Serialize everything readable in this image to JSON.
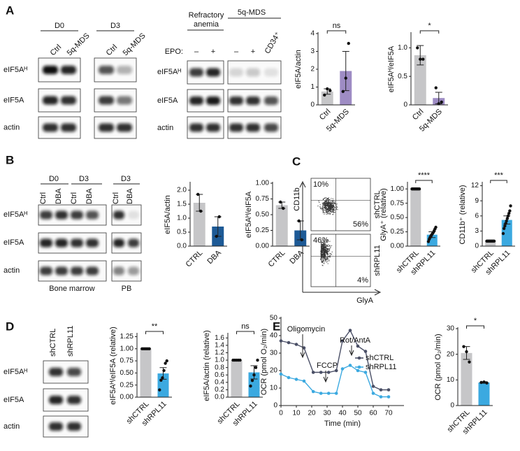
{
  "panel_labels": [
    "A",
    "B",
    "C",
    "D",
    "E"
  ],
  "blots_A": [
    {
      "title": "D0",
      "lanes": [
        "Ctrl",
        "5q-MDS"
      ],
      "rows": [
        "eIF5Aᴴ",
        "eIF5A",
        "actin"
      ]
    },
    {
      "title": "D3",
      "lanes": [
        "Ctrl",
        "5q-MDS"
      ]
    },
    {
      "titles": [
        [
          "Refractory",
          "anemia"
        ],
        "5q-MDS"
      ],
      "treatment_label": "EPO:",
      "lanes": [
        "–",
        "+",
        "–",
        "+",
        "CD34⁺"
      ],
      "rows": [
        "eIF5Aᴴ",
        "eIF5A",
        "actin"
      ]
    }
  ],
  "blots_B": [
    {
      "titles": [
        "D0",
        "D3"
      ],
      "lanes": [
        "Ctrl",
        "DBA",
        "Ctrl",
        "DBA"
      ],
      "rows": [
        "eIF5Aᴴ",
        "eIF5A",
        "actin"
      ],
      "footer": "Bone marrow"
    },
    {
      "title": "D3",
      "lanes": [
        "Ctrl",
        "DBA"
      ],
      "footer": "PB"
    }
  ],
  "flow_C": {
    "y_label": "CD11b",
    "x_label": "GlyA",
    "plots": [
      {
        "name": "shCTRL",
        "upper_left": "10%",
        "lower_right": "56%"
      },
      {
        "name": "shRPL11",
        "upper_left": "46%",
        "lower_right": "4%"
      }
    ]
  },
  "blots_D": {
    "lanes": [
      "shCTRL",
      "shRPL11"
    ],
    "rows": [
      "eIF5Aᴴ",
      "eIF5A",
      "actin"
    ]
  },
  "chart_data": [
    {
      "type": "bar",
      "y_label": "eIF5A/actin",
      "categories": [
        "Ctrl",
        "5q-MDS"
      ],
      "values": [
        0.75,
        1.9
      ],
      "errors": [
        0.15,
        1.1
      ],
      "points": [
        [
          0.55,
          0.9,
          0.8
        ],
        [
          0.75,
          1.5,
          3.45
        ]
      ],
      "colors": [
        "#c6c6c8",
        "#9e8cc4"
      ],
      "ylim": [
        0,
        4
      ],
      "yticks": [
        0,
        1,
        2,
        3,
        4
      ],
      "annotation": "ns"
    },
    {
      "type": "bar",
      "y_label": "eIF5Aᴴ/eIF5A",
      "categories": [
        "Ctrl",
        "5q-MDS"
      ],
      "values": [
        0.87,
        0.12
      ],
      "errors": [
        0.17,
        0.1
      ],
      "points": [
        [
          1.0,
          0.8,
          0.8
        ],
        [
          0.3,
          0.02,
          0.05
        ]
      ],
      "colors": [
        "#c6c6c8",
        "#9e8cc4"
      ],
      "ylim": [
        0,
        1.25
      ],
      "yticks": [
        0,
        {
          "value": 0.5,
          "label": "0.5"
        },
        {
          "value": 1,
          "label": "1.0"
        }
      ],
      "annotation": "*"
    },
    {
      "type": "bar",
      "y_label": "eIF5A/actin",
      "categories": [
        "CTRL",
        "DBA"
      ],
      "values": [
        1.55,
        0.7
      ],
      "errors": [
        0.3,
        0.35
      ],
      "points": [
        [
          1.85,
          1.25
        ],
        [
          0.35,
          1.05
        ]
      ],
      "colors": [
        "#c6c6c8",
        "#1d5a96"
      ],
      "ylim": [
        0,
        2.25
      ],
      "yticks": [
        {
          "value": 0,
          "label": "0.0"
        },
        {
          "value": 0.5,
          "label": "0.5"
        },
        {
          "value": 1,
          "label": "1.0"
        },
        {
          "value": 1.5,
          "label": "1.5"
        },
        {
          "value": 2,
          "label": "2.0"
        }
      ]
    },
    {
      "type": "bar",
      "y_label": "eIF5Aᴴ/eIF5A",
      "categories": [
        "CTRL",
        "DBA"
      ],
      "values": [
        0.65,
        0.25
      ],
      "errors": [
        0.05,
        0.15
      ],
      "points": [
        [
          0.7,
          0.6
        ],
        [
          0.4,
          0.1
        ]
      ],
      "colors": [
        "#c6c6c8",
        "#1d5a96"
      ],
      "ylim": [
        0,
        1.0
      ],
      "yticks": [
        {
          "value": 0,
          "label": "0.00"
        },
        {
          "value": 0.25,
          "label": "0.25"
        },
        {
          "value": 0.5,
          "label": "0.50"
        },
        {
          "value": 0.75,
          "label": "0.75"
        },
        {
          "value": 1,
          "label": "1.00"
        }
      ]
    },
    {
      "type": "bar",
      "y_label": "GlyA⁺ (relative)",
      "categories": [
        "shCTRL",
        "shRPL11"
      ],
      "values": [
        1.0,
        0.2
      ],
      "errors": [
        0,
        0.05
      ],
      "points": [
        [
          1,
          1,
          1,
          1,
          1,
          1,
          1,
          1,
          1,
          1
        ],
        [
          0.08,
          0.12,
          0.15,
          0.18,
          0.2,
          0.22,
          0.24,
          0.27,
          0.3,
          0.33
        ]
      ],
      "colors": [
        "#c6c6c8",
        "#3ba9e0"
      ],
      "ylim": [
        0,
        1.1
      ],
      "yticks": [
        {
          "value": 0,
          "label": "0.00"
        },
        {
          "value": 0.25,
          "label": "0.25"
        },
        {
          "value": 0.5,
          "label": "0.50"
        },
        {
          "value": 0.75,
          "label": "0.75"
        },
        {
          "value": 1,
          "label": "1.00"
        }
      ],
      "annotation": "****"
    },
    {
      "type": "bar",
      "y_label": "CD11b⁺ (relative)",
      "categories": [
        "shCTRL",
        "shRPL11"
      ],
      "values": [
        1,
        5.2
      ],
      "errors": [
        0,
        0.8
      ],
      "points": [
        [
          1,
          1,
          1,
          1,
          1,
          1,
          1,
          1,
          1,
          1
        ],
        [
          2.5,
          3.5,
          4,
          4.5,
          5,
          5.5,
          6,
          6.5,
          7,
          8
        ]
      ],
      "colors": [
        "#c6c6c8",
        "#3ba9e0"
      ],
      "ylim": [
        0,
        12.5
      ],
      "yticks": [
        0,
        3,
        6,
        9,
        12
      ],
      "annotation": "***"
    },
    {
      "type": "bar",
      "y_label": "eIF5Aᴴ/eIF5A (relative)",
      "categories": [
        "shCTRL",
        "shRPL11"
      ],
      "values": [
        1.0,
        0.49
      ],
      "errors": [
        0,
        0.12
      ],
      "points": [
        [
          1,
          1,
          1,
          1,
          1,
          1
        ],
        [
          0.15,
          0.35,
          0.4,
          0.55,
          0.7,
          0.75
        ]
      ],
      "colors": [
        "#c6c6c8",
        "#3ba9e0"
      ],
      "ylim": [
        0,
        1.3
      ],
      "yticks": [
        {
          "value": 0,
          "label": "0.00"
        },
        {
          "value": 0.25,
          "label": "0.25"
        },
        {
          "value": 0.5,
          "label": "0.50"
        },
        {
          "value": 0.75,
          "label": "0.75"
        },
        {
          "value": 1,
          "label": "1.00"
        },
        {
          "value": 1.25,
          "label": "1.25"
        }
      ],
      "annotation": "**"
    },
    {
      "type": "bar",
      "y_label": "eIF5A/actin (relative)",
      "categories": [
        "shCTRL",
        "shRPL11"
      ],
      "values": [
        1.0,
        0.67
      ],
      "errors": [
        0,
        0.18
      ],
      "points": [
        [
          1,
          1,
          1,
          1,
          1
        ],
        [
          0.3,
          0.45,
          0.6,
          0.8,
          1.0
        ]
      ],
      "colors": [
        "#c6c6c8",
        "#3ba9e0"
      ],
      "ylim": [
        0,
        1.7
      ],
      "yticks": [
        {
          "value": 0,
          "label": "0.0"
        },
        {
          "value": 0.2,
          "label": "0.2"
        },
        {
          "value": 0.4,
          "label": "0.4"
        },
        {
          "value": 0.6,
          "label": "0.6"
        },
        {
          "value": 0.8,
          "label": "0.8"
        },
        {
          "value": 1,
          "label": "1.0"
        },
        {
          "value": 1.2,
          "label": "1.2"
        },
        {
          "value": 1.4,
          "label": "1.4"
        },
        {
          "value": 1.6,
          "label": "1.6"
        }
      ],
      "annotation": "ns"
    },
    {
      "type": "line",
      "y_label": "OCR (pmol O₂/min)",
      "x_label": "Time (min)",
      "x": [
        0,
        5,
        10,
        15,
        21,
        26,
        31,
        36,
        40,
        45,
        50,
        55,
        60,
        65,
        70
      ],
      "series": [
        {
          "name": "shCTRL",
          "color": "#4a4f66",
          "values": [
            37,
            36,
            35,
            33,
            19,
            19,
            19,
            20,
            37,
            43,
            34,
            31,
            11,
            9,
            9
          ]
        },
        {
          "name": "shRPL11",
          "color": "#3ba9e0",
          "values": [
            18,
            16,
            15,
            14,
            8,
            7,
            7,
            7,
            21,
            23,
            20,
            19,
            7,
            5,
            5
          ]
        }
      ],
      "annotations": [
        "Oligomycin",
        "FCCP",
        "Rot/AntA"
      ],
      "xlim": [
        0,
        80
      ],
      "xticks": [
        0,
        10,
        20,
        30,
        40,
        50,
        60,
        70
      ],
      "ylim": [
        0,
        50
      ],
      "yticks": [
        0,
        10,
        20,
        30,
        40,
        50
      ]
    },
    {
      "type": "bar",
      "y_label": "OCR (pmol O₂/min)",
      "categories": [
        "shCTRL",
        "shRPL11"
      ],
      "values": [
        20.5,
        9
      ],
      "errors": [
        2.5,
        0.3
      ],
      "points": [
        [
          23,
          21,
          17
        ],
        [
          9,
          9.2,
          8.8
        ]
      ],
      "colors": [
        "#c6c6c8",
        "#3ba9e0"
      ],
      "ylim": [
        0,
        30
      ],
      "yticks": [
        0,
        10,
        20,
        30
      ],
      "annotation": "*"
    }
  ]
}
